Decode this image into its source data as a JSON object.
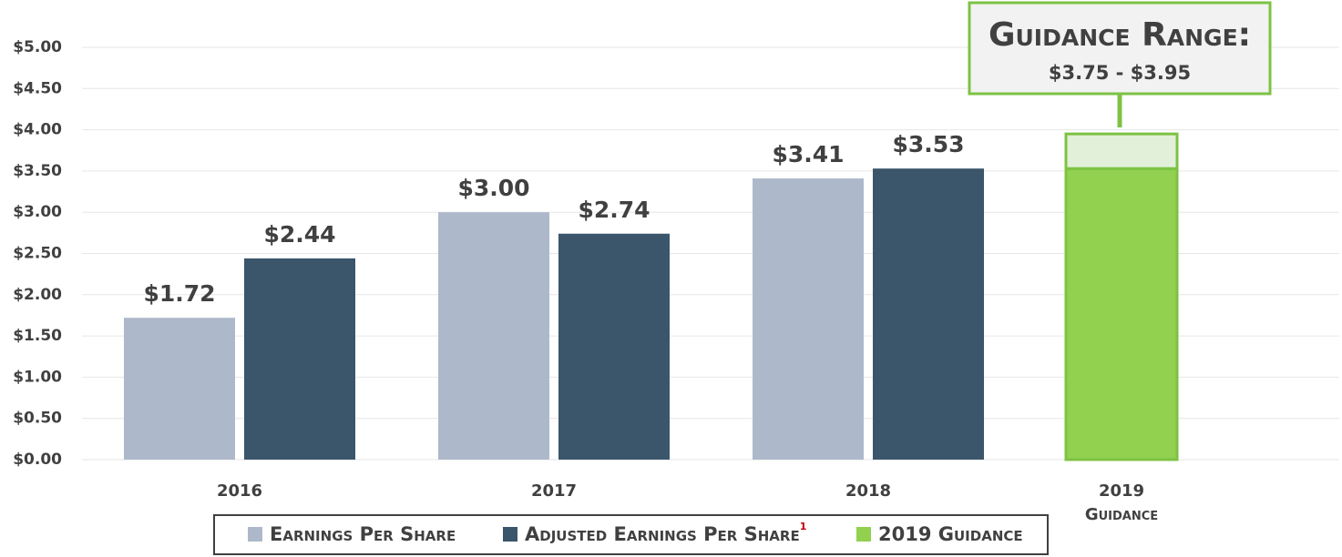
{
  "chart_data": {
    "type": "bar",
    "categories": [
      "2016",
      "2017",
      "2018",
      "2019"
    ],
    "category_sublabels": [
      null,
      null,
      null,
      "Guidance"
    ],
    "series": [
      {
        "name": "Earnings Per Share",
        "color": "#adb9ca",
        "values": [
          1.72,
          3.0,
          3.41,
          null
        ],
        "value_labels": [
          "$1.72",
          "$3.00",
          "$3.41",
          null
        ]
      },
      {
        "name": "Adjusted Earnings Per Share",
        "footnote": "1",
        "color": "#3b556b",
        "values": [
          2.44,
          2.74,
          3.53,
          null
        ],
        "value_labels": [
          "$2.44",
          "$2.74",
          "$3.53",
          null
        ]
      },
      {
        "name": "2019 Guidance",
        "color": "#92d050",
        "values": [
          null,
          null,
          null,
          3.53
        ],
        "range_color": "#e2f0d9",
        "range_values": [
          null,
          null,
          null,
          0.42
        ]
      }
    ],
    "annotation": {
      "title": "Guidance Range:",
      "text": "$3.75 - $3.95"
    },
    "ylim": [
      0,
      5
    ],
    "yticks": [
      {
        "value": 0,
        "label": "$0.00"
      },
      {
        "value": 0.5,
        "label": "$0.50"
      },
      {
        "value": 1,
        "label": "$1.00"
      },
      {
        "value": 1.5,
        "label": "$1.50"
      },
      {
        "value": 2,
        "label": "$2.00"
      },
      {
        "value": 2.5,
        "label": "$2.50"
      },
      {
        "value": 3,
        "label": "$3.00"
      },
      {
        "value": 3.5,
        "label": "$3.50"
      },
      {
        "value": 4,
        "label": "$4.00"
      },
      {
        "value": 4.5,
        "label": "$4.50"
      },
      {
        "value": 5,
        "label": "$5.00"
      }
    ],
    "grid": true
  }
}
